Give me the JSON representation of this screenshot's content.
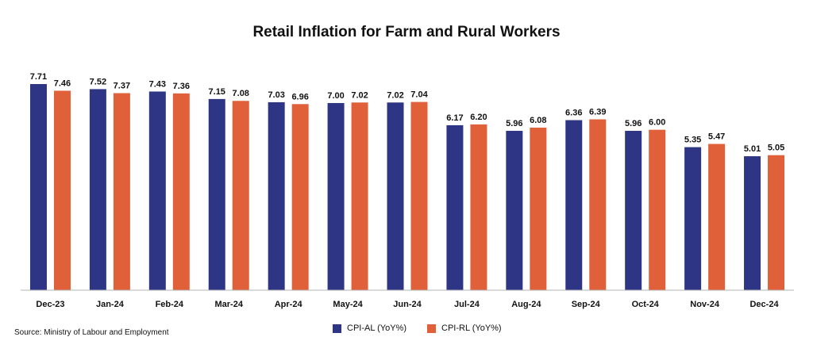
{
  "chart_data": {
    "type": "bar",
    "title": "Retail Inflation for Farm and Rural Workers",
    "categories": [
      "Dec-23",
      "Jan-24",
      "Feb-24",
      "Mar-24",
      "Apr-24",
      "May-24",
      "Jun-24",
      "Jul-24",
      "Aug-24",
      "Sep-24",
      "Oct-24",
      "Nov-24",
      "Dec-24"
    ],
    "series": [
      {
        "name": "CPI-AL (YoY%)",
        "color": "#2e3585",
        "values": [
          7.71,
          7.52,
          7.43,
          7.15,
          7.03,
          7.0,
          7.02,
          6.17,
          5.96,
          6.36,
          5.96,
          5.35,
          5.01
        ]
      },
      {
        "name": "CPI-RL (YoY%)",
        "color": "#e0603a",
        "values": [
          7.46,
          7.37,
          7.36,
          7.08,
          6.96,
          7.02,
          7.04,
          6.2,
          6.08,
          6.39,
          6.0,
          5.47,
          5.05
        ]
      }
    ],
    "ylim": [
      0,
      7.71
    ],
    "grid": false,
    "legend_position": "bottom"
  },
  "source": "Source:  Ministry of Labour and Employment"
}
